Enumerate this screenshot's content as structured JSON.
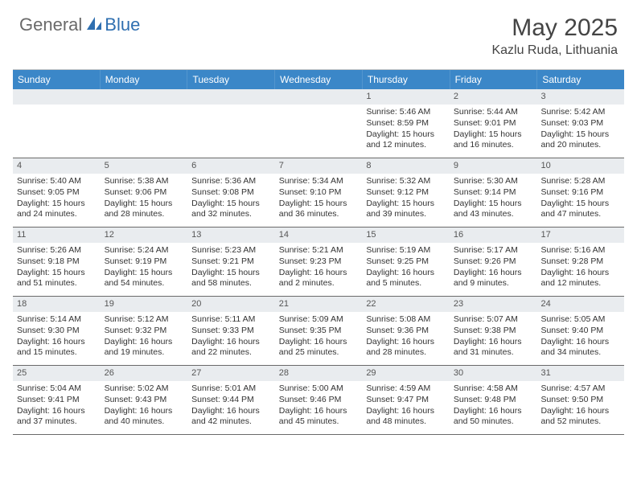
{
  "brand": {
    "text1": "General",
    "text2": "Blue"
  },
  "title": "May 2025",
  "location": "Kazlu Ruda, Lithuania",
  "colors": {
    "header_bg": "#3b87c8",
    "header_text": "#ffffff",
    "daynum_bg": "#e9ecef",
    "border": "#6a6a6a",
    "logo_gray": "#6a6a6a",
    "logo_blue": "#2f6fb0"
  },
  "weekdays": [
    "Sunday",
    "Monday",
    "Tuesday",
    "Wednesday",
    "Thursday",
    "Friday",
    "Saturday"
  ],
  "weeks": [
    [
      {
        "n": "",
        "blank": true
      },
      {
        "n": "",
        "blank": true
      },
      {
        "n": "",
        "blank": true
      },
      {
        "n": "",
        "blank": true
      },
      {
        "n": "1",
        "sr": "5:46 AM",
        "ss": "8:59 PM",
        "dl": "15 hours and 12 minutes."
      },
      {
        "n": "2",
        "sr": "5:44 AM",
        "ss": "9:01 PM",
        "dl": "15 hours and 16 minutes."
      },
      {
        "n": "3",
        "sr": "5:42 AM",
        "ss": "9:03 PM",
        "dl": "15 hours and 20 minutes."
      }
    ],
    [
      {
        "n": "4",
        "sr": "5:40 AM",
        "ss": "9:05 PM",
        "dl": "15 hours and 24 minutes."
      },
      {
        "n": "5",
        "sr": "5:38 AM",
        "ss": "9:06 PM",
        "dl": "15 hours and 28 minutes."
      },
      {
        "n": "6",
        "sr": "5:36 AM",
        "ss": "9:08 PM",
        "dl": "15 hours and 32 minutes."
      },
      {
        "n": "7",
        "sr": "5:34 AM",
        "ss": "9:10 PM",
        "dl": "15 hours and 36 minutes."
      },
      {
        "n": "8",
        "sr": "5:32 AM",
        "ss": "9:12 PM",
        "dl": "15 hours and 39 minutes."
      },
      {
        "n": "9",
        "sr": "5:30 AM",
        "ss": "9:14 PM",
        "dl": "15 hours and 43 minutes."
      },
      {
        "n": "10",
        "sr": "5:28 AM",
        "ss": "9:16 PM",
        "dl": "15 hours and 47 minutes."
      }
    ],
    [
      {
        "n": "11",
        "sr": "5:26 AM",
        "ss": "9:18 PM",
        "dl": "15 hours and 51 minutes."
      },
      {
        "n": "12",
        "sr": "5:24 AM",
        "ss": "9:19 PM",
        "dl": "15 hours and 54 minutes."
      },
      {
        "n": "13",
        "sr": "5:23 AM",
        "ss": "9:21 PM",
        "dl": "15 hours and 58 minutes."
      },
      {
        "n": "14",
        "sr": "5:21 AM",
        "ss": "9:23 PM",
        "dl": "16 hours and 2 minutes."
      },
      {
        "n": "15",
        "sr": "5:19 AM",
        "ss": "9:25 PM",
        "dl": "16 hours and 5 minutes."
      },
      {
        "n": "16",
        "sr": "5:17 AM",
        "ss": "9:26 PM",
        "dl": "16 hours and 9 minutes."
      },
      {
        "n": "17",
        "sr": "5:16 AM",
        "ss": "9:28 PM",
        "dl": "16 hours and 12 minutes."
      }
    ],
    [
      {
        "n": "18",
        "sr": "5:14 AM",
        "ss": "9:30 PM",
        "dl": "16 hours and 15 minutes."
      },
      {
        "n": "19",
        "sr": "5:12 AM",
        "ss": "9:32 PM",
        "dl": "16 hours and 19 minutes."
      },
      {
        "n": "20",
        "sr": "5:11 AM",
        "ss": "9:33 PM",
        "dl": "16 hours and 22 minutes."
      },
      {
        "n": "21",
        "sr": "5:09 AM",
        "ss": "9:35 PM",
        "dl": "16 hours and 25 minutes."
      },
      {
        "n": "22",
        "sr": "5:08 AM",
        "ss": "9:36 PM",
        "dl": "16 hours and 28 minutes."
      },
      {
        "n": "23",
        "sr": "5:07 AM",
        "ss": "9:38 PM",
        "dl": "16 hours and 31 minutes."
      },
      {
        "n": "24",
        "sr": "5:05 AM",
        "ss": "9:40 PM",
        "dl": "16 hours and 34 minutes."
      }
    ],
    [
      {
        "n": "25",
        "sr": "5:04 AM",
        "ss": "9:41 PM",
        "dl": "16 hours and 37 minutes."
      },
      {
        "n": "26",
        "sr": "5:02 AM",
        "ss": "9:43 PM",
        "dl": "16 hours and 40 minutes."
      },
      {
        "n": "27",
        "sr": "5:01 AM",
        "ss": "9:44 PM",
        "dl": "16 hours and 42 minutes."
      },
      {
        "n": "28",
        "sr": "5:00 AM",
        "ss": "9:46 PM",
        "dl": "16 hours and 45 minutes."
      },
      {
        "n": "29",
        "sr": "4:59 AM",
        "ss": "9:47 PM",
        "dl": "16 hours and 48 minutes."
      },
      {
        "n": "30",
        "sr": "4:58 AM",
        "ss": "9:48 PM",
        "dl": "16 hours and 50 minutes."
      },
      {
        "n": "31",
        "sr": "4:57 AM",
        "ss": "9:50 PM",
        "dl": "16 hours and 52 minutes."
      }
    ]
  ],
  "labels": {
    "sunrise": "Sunrise: ",
    "sunset": "Sunset: ",
    "daylight": "Daylight: "
  }
}
